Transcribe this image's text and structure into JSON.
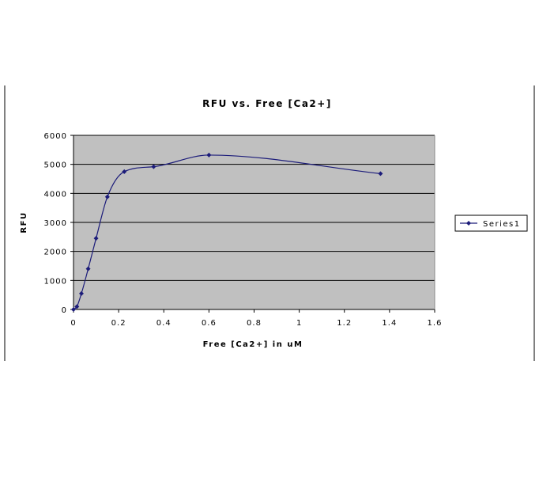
{
  "chart_data": {
    "type": "line",
    "title": "RFU vs. Free [Ca2+]",
    "xlabel": "Free [Ca2+] in uM",
    "ylabel": "RFU",
    "xlim": [
      0,
      1.6
    ],
    "ylim": [
      0,
      6000
    ],
    "x_ticks": [
      "0",
      "0.2",
      "0.4",
      "0.6",
      "0.8",
      "1",
      "1.2",
      "1.4",
      "1.6"
    ],
    "y_ticks": [
      "0",
      "1000",
      "2000",
      "3000",
      "4000",
      "5000",
      "6000"
    ],
    "grid": "horizontal",
    "smooth": true,
    "legend_position": "right",
    "colors": {
      "series": "#1c1c7a",
      "plot_area": "#c0c0c0",
      "gridline": "#000000"
    },
    "series": [
      {
        "name": "Series1",
        "x": [
          0.0,
          0.015,
          0.035,
          0.065,
          0.1,
          0.15,
          0.225,
          0.355,
          0.6,
          1.36
        ],
        "y": [
          0,
          100,
          550,
          1400,
          2450,
          3880,
          4750,
          4920,
          5320,
          4680
        ]
      }
    ]
  }
}
